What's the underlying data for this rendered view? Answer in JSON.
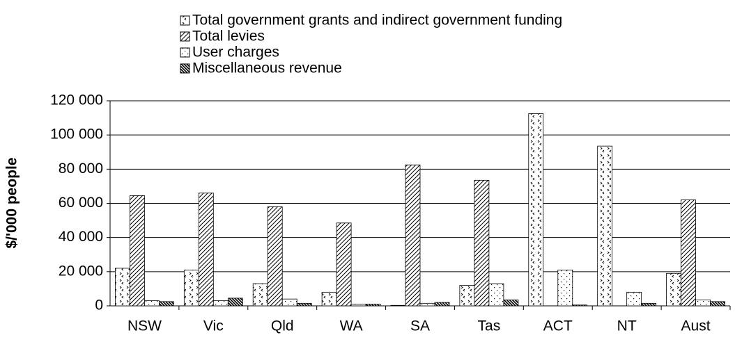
{
  "chart_data": {
    "type": "bar",
    "y_label": "$/'000 people",
    "categories": [
      "NSW",
      "Vic",
      "Qld",
      "WA",
      "SA",
      "Tas",
      "ACT",
      "NT",
      "Aust"
    ],
    "series": [
      {
        "name": "Total government grants and indirect government funding",
        "color": "#000000",
        "values": [
          22000,
          21000,
          13000,
          8000,
          300,
          12000,
          112500,
          93500,
          19000
        ]
      },
      {
        "name": "Total levies",
        "color": "#000000",
        "values": [
          64500,
          66000,
          58000,
          48500,
          82500,
          73500,
          0,
          0,
          62000
        ]
      },
      {
        "name": "User charges",
        "color": "#000000",
        "values": [
          3000,
          3000,
          4000,
          1000,
          1500,
          13000,
          21000,
          8000,
          3500
        ]
      },
      {
        "name": "Miscellaneous revenue",
        "color": "#000000",
        "values": [
          2500,
          4500,
          1500,
          1000,
          2000,
          3500,
          500,
          1500,
          2500
        ]
      }
    ],
    "ylim": [
      0,
      120000
    ],
    "yticks": [
      0,
      {
        "value": 20000,
        "label": "20 000"
      },
      {
        "value": 40000,
        "label": "40 000"
      },
      {
        "value": 60000,
        "label": "60 000"
      },
      {
        "value": 80000,
        "label": "80 000"
      },
      {
        "value": 100000,
        "label": "100 000"
      },
      {
        "value": 120000,
        "label": "120 000"
      }
    ],
    "grid": true
  }
}
